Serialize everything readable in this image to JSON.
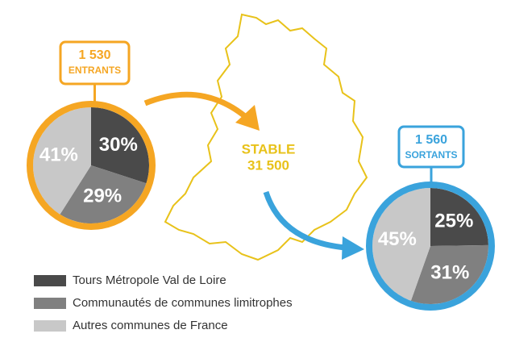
{
  "chart_data": [
    {
      "type": "pie",
      "title": "1 530",
      "subtitle": "ENTRANTS",
      "ring_color": "#f5a623",
      "values": [
        30,
        29,
        41
      ],
      "value_labels": [
        "30%",
        "29%",
        "41%"
      ]
    },
    {
      "type": "pie",
      "title": "1 560",
      "subtitle": "SORTANTS",
      "ring_color": "#3aa3dc",
      "values": [
        25,
        31,
        45
      ],
      "value_labels": [
        "25%",
        "31%",
        "45%"
      ]
    }
  ],
  "center": {
    "label": "STABLE",
    "value": "31 500"
  },
  "legend": {
    "labels": [
      "Tours Métropole Val de Loire",
      "Communautés de communes limitrophes",
      "Autres communes de France"
    ],
    "colors": [
      "#4a4a4a",
      "#808080",
      "#c8c8c8"
    ]
  }
}
